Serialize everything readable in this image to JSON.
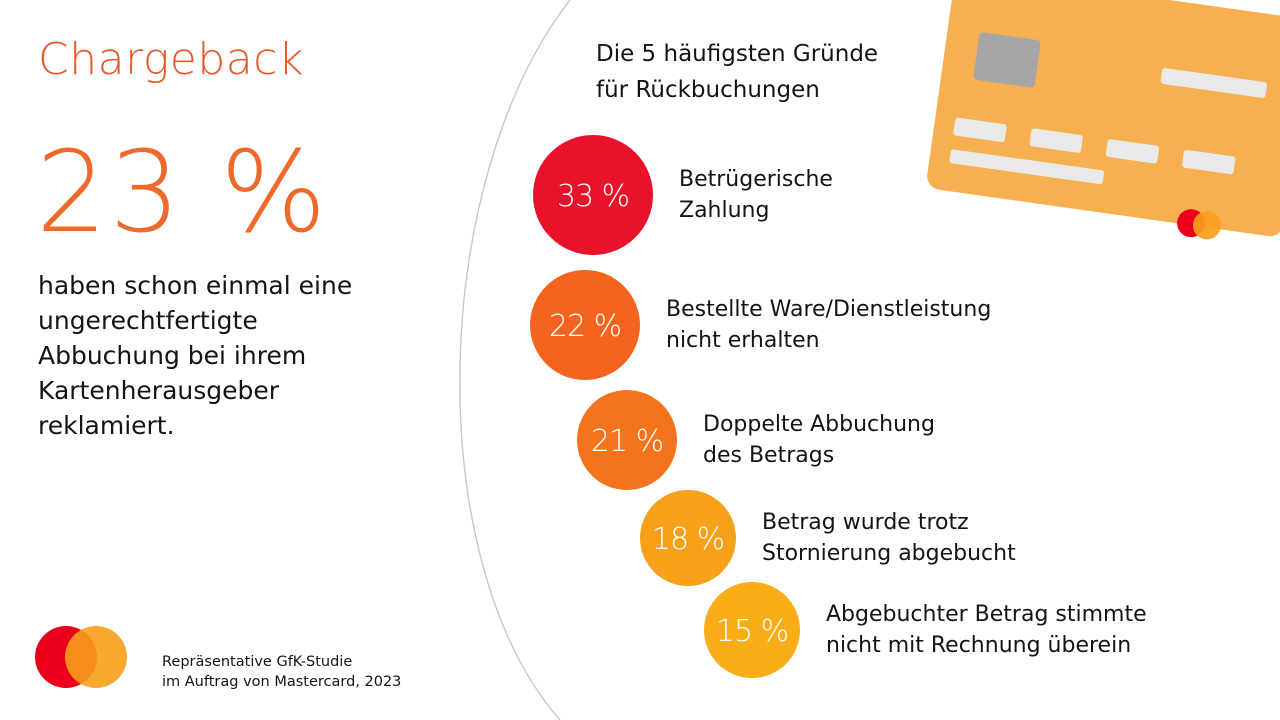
{
  "header": {
    "title": "Chargeback",
    "stat_value": "23 %",
    "stat_description": "haben schon einmal eine ungerechtfertigte Abbuchung bei ihrem Kartenherausgeber reklamiert."
  },
  "source": {
    "line1": "Repräsentative GfK-Studie",
    "line2": "im Auftrag von Mastercard, 2023"
  },
  "icons": [
    "mastercard-logo-icon",
    "credit-card-icon"
  ],
  "colors": {
    "title": "#e8582a",
    "red": "#eb001b",
    "orange": "#f79e1b",
    "card": "#f6b04f"
  },
  "chart_data": {
    "type": "bubble",
    "title_line1": "Die 5 häufigsten Gründe",
    "title_line2": "für Rückbuchungen",
    "unit": "%",
    "items": [
      {
        "value": 33,
        "label": "33 %",
        "line1": "Betrügerische",
        "line2": "Zahlung",
        "color": "#e8132a"
      },
      {
        "value": 22,
        "label": "22 %",
        "line1": "Bestellte Ware/Dienstleistung",
        "line2": "nicht erhalten",
        "color": "#f4641f"
      },
      {
        "value": 21,
        "label": "21 %",
        "line1": "Doppelte Abbuchung",
        "line2": "des Betrags",
        "color": "#f5731c"
      },
      {
        "value": 18,
        "label": "18 %",
        "line1": "Betrag wurde trotz",
        "line2": "Stornierung abgebucht",
        "color": "#f7a11a"
      },
      {
        "value": 15,
        "label": "15 %",
        "line1": "Abgebuchter Betrag stimmte",
        "line2": "nicht mit Rechnung überein",
        "color": "#f8ac16"
      }
    ]
  }
}
